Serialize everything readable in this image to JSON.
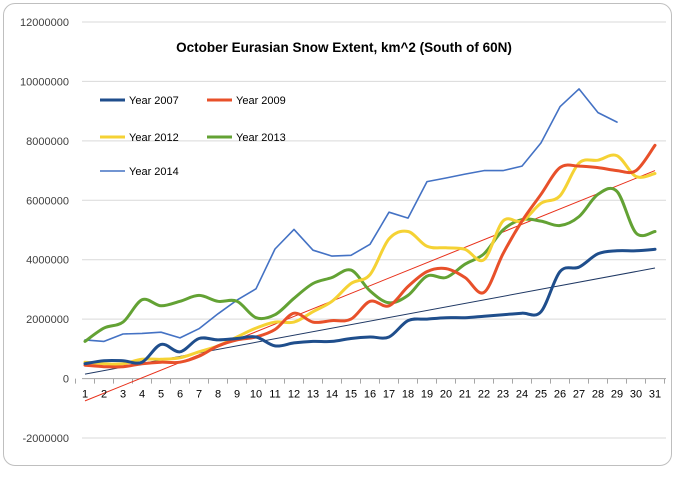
{
  "chart_data": {
    "type": "line",
    "title": "October Eurasian Snow Extent, km^2 (South of 60N)",
    "xlabel": "",
    "ylabel": "",
    "x": [
      1,
      2,
      3,
      4,
      5,
      6,
      7,
      8,
      9,
      10,
      11,
      12,
      13,
      14,
      15,
      16,
      17,
      18,
      19,
      20,
      21,
      22,
      23,
      24,
      25,
      26,
      27,
      28,
      29,
      30,
      31
    ],
    "x_tick_labels": [
      "1",
      "2",
      "3",
      "4",
      "5",
      "6",
      "7",
      "8",
      "9",
      "10",
      "11",
      "12",
      "13",
      "14",
      "15",
      "16",
      "17",
      "18",
      "19",
      "20",
      "21",
      "22",
      "23",
      "24",
      "25",
      "26",
      "27",
      "28",
      "29",
      "30",
      "31"
    ],
    "ylim": [
      -2000000,
      12000000
    ],
    "y_tick_labels": [
      "12000000",
      "10000000",
      "8000000",
      "6000000",
      "4000000",
      "2000000",
      "0",
      "-2000000"
    ],
    "grid": "horizontal",
    "legend_position": "top-left",
    "series": [
      {
        "name": "Year 2007",
        "color": "#1f4e8c",
        "smooth": true,
        "values": [
          500000,
          600000,
          600000,
          550000,
          1150000,
          900000,
          1350000,
          1300000,
          1350000,
          1400000,
          1100000,
          1200000,
          1250000,
          1250000,
          1350000,
          1400000,
          1400000,
          1950000,
          2000000,
          2050000,
          2050000,
          2100000,
          2150000,
          2200000,
          2250000,
          3600000,
          3750000,
          4200000,
          4300000,
          4300000,
          4350000
        ]
      },
      {
        "name": "Year 2009",
        "color": "#e8502a",
        "smooth": true,
        "values": [
          450000,
          400000,
          400000,
          500000,
          550000,
          550000,
          750000,
          1100000,
          1300000,
          1400000,
          1650000,
          2200000,
          1900000,
          1950000,
          2000000,
          2600000,
          2450000,
          3100000,
          3600000,
          3700000,
          3400000,
          2900000,
          4200000,
          5300000,
          6200000,
          7100000,
          7150000,
          7100000,
          7000000,
          7000000,
          7850000
        ]
      },
      {
        "name": "Year 2012",
        "color": "#f5d234",
        "smooth": true,
        "values": [
          550000,
          500000,
          500000,
          650000,
          650000,
          700000,
          900000,
          1100000,
          1400000,
          1700000,
          1900000,
          1900000,
          2250000,
          2600000,
          3200000,
          3500000,
          4700000,
          4950000,
          4450000,
          4400000,
          4350000,
          4000000,
          5300000,
          5300000,
          5900000,
          6150000,
          7250000,
          7350000,
          7500000,
          6800000,
          6900000
        ]
      },
      {
        "name": "Year 2013",
        "color": "#63a234",
        "smooth": true,
        "values": [
          1250000,
          1700000,
          1900000,
          2650000,
          2450000,
          2600000,
          2800000,
          2600000,
          2600000,
          2050000,
          2150000,
          2700000,
          3200000,
          3400000,
          3650000,
          2950000,
          2550000,
          2800000,
          3450000,
          3400000,
          3850000,
          4200000,
          5000000,
          5350000,
          5300000,
          5150000,
          5450000,
          6200000,
          6300000,
          4900000,
          4950000
        ]
      },
      {
        "name": "Year 2014",
        "color": "#4472c4",
        "smooth": false,
        "values": [
          1300000,
          1250000,
          1500000,
          1520000,
          1560000,
          1370000,
          1680000,
          2180000,
          2640000,
          3020000,
          4360000,
          5020000,
          4320000,
          4120000,
          4150000,
          4520000,
          5600000,
          5400000,
          6630000,
          6750000,
          6880000,
          7000000,
          7000000,
          7150000,
          7930000,
          9150000,
          9750000,
          8950000,
          8630000,
          null,
          null
        ]
      }
    ],
    "trendlines": [
      {
        "of": "Year 2007",
        "color": "#1f3864",
        "start": [
          1,
          150000
        ],
        "end": [
          31,
          3720000
        ]
      },
      {
        "of": "Year 2009",
        "color": "#e8301a",
        "start": [
          1,
          -750000
        ],
        "end": [
          31,
          7000000
        ]
      }
    ]
  }
}
